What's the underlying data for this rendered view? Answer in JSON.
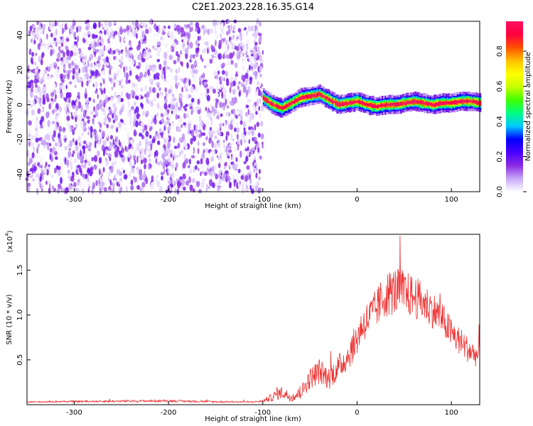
{
  "title": "C2E1.2023.228.16.35.G14",
  "chart_data": [
    {
      "type": "heatmap",
      "panel": "spectrogram",
      "xlabel": "Height of straight line (km)",
      "ylabel": "Frequency (Hz)",
      "xlim": [
        -350,
        130
      ],
      "ylim": [
        -50,
        48
      ],
      "x_ticks": [
        -300,
        -200,
        -100,
        0,
        100
      ],
      "y_ticks": [
        -40,
        -20,
        0,
        20,
        40
      ],
      "noise_region": {
        "x_range": [
          -350,
          -100
        ],
        "y_range": [
          -50,
          48
        ],
        "amplitude_range": [
          0.0,
          0.2
        ]
      },
      "signal_trace": {
        "x": [
          -100,
          -90,
          -80,
          -70,
          -60,
          -50,
          -40,
          -30,
          -20,
          -10,
          0,
          10,
          20,
          30,
          40,
          50,
          60,
          70,
          80,
          90,
          100,
          110,
          120,
          130
        ],
        "freq": [
          4,
          0,
          -2,
          1,
          4,
          5,
          6,
          3,
          0,
          1,
          2,
          0,
          -1,
          0,
          0,
          1,
          2,
          1,
          0,
          1,
          1,
          2,
          2,
          1
        ],
        "peak_amplitude": 1.0
      },
      "colorbar": {
        "label": "Normalized spectral amplitude",
        "ticks": [
          0.0,
          0.2,
          0.4,
          0.6,
          0.8
        ],
        "range": [
          0.0,
          0.97
        ],
        "colors": [
          "#ffffff",
          "#c8a8f8",
          "#8b2be2",
          "#4b00ff",
          "#0000ff",
          "#00c8ff",
          "#00ff80",
          "#40ff00",
          "#c8ff00",
          "#ffff00",
          "#ffc000",
          "#ff5000",
          "#ff0040",
          "#ff1060"
        ]
      }
    },
    {
      "type": "line",
      "panel": "snr",
      "xlabel": "Height of straight line (km)",
      "ylabel": "SNR (10 * v/v)",
      "y_scale_note": "(x10",
      "y_scale_exp": "4",
      "y_scale_close": ")",
      "xlim": [
        -350,
        130
      ],
      "ylim": [
        0,
        19000
      ],
      "x_ticks": [
        -300,
        -200,
        -100,
        0,
        100
      ],
      "y_ticks": [
        0.5,
        1.0,
        1.5
      ],
      "color": "#ee3333",
      "series": [
        {
          "x": [
            -350,
            -300,
            -250,
            -200,
            -150,
            -110,
            -100,
            -90,
            -80,
            -70,
            -60,
            -50,
            -40,
            -30,
            -20,
            -10,
            0,
            5,
            10,
            20,
            30,
            40,
            50,
            60,
            70,
            80,
            90,
            100,
            110,
            120,
            130
          ],
          "values": [
            300,
            350,
            380,
            420,
            320,
            300,
            380,
            800,
            1300,
            800,
            1200,
            2800,
            3600,
            2800,
            4000,
            5200,
            7200,
            8600,
            9200,
            10400,
            12000,
            12400,
            12200,
            11800,
            11200,
            10400,
            9400,
            7800,
            6800,
            5800,
            5200
          ],
          "spread": [
            80,
            120,
            140,
            160,
            120,
            100,
            200,
            600,
            900,
            700,
            900,
            1500,
            1800,
            1600,
            1800,
            2000,
            2400,
            2400,
            2600,
            2800,
            3200,
            3400,
            3200,
            3000,
            2800,
            2600,
            2400,
            2200,
            2000,
            1800,
            1600
          ]
        }
      ]
    }
  ]
}
